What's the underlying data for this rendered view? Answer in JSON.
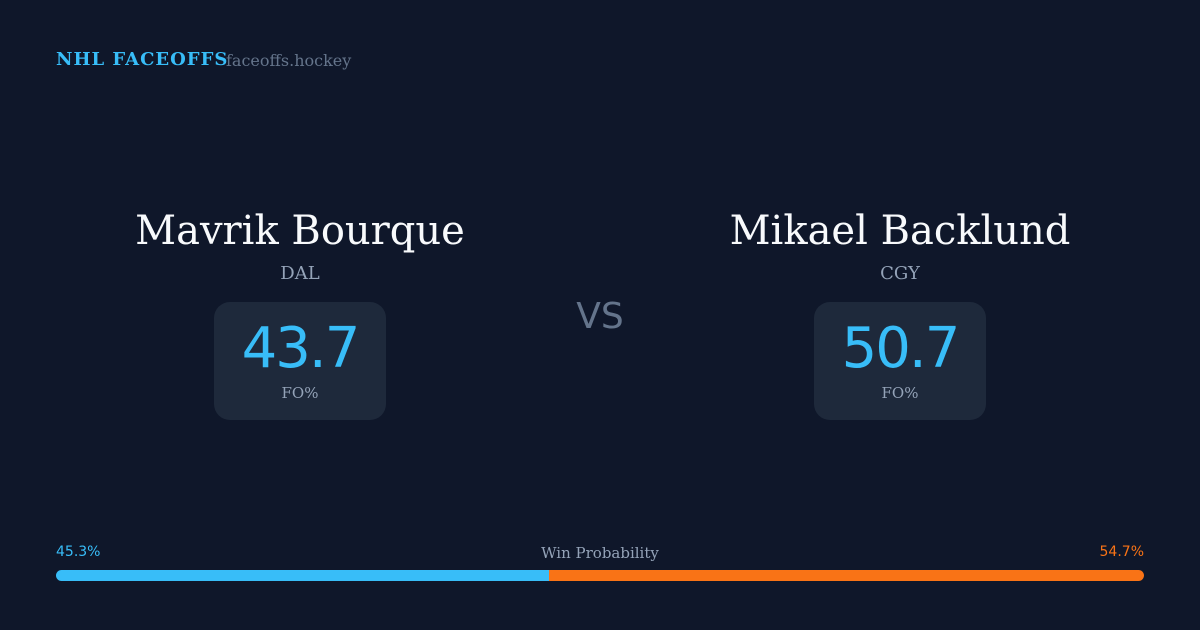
{
  "header": {
    "brand": "NHL FACEOFFS",
    "site": "faceoffs.hockey"
  },
  "players": [
    {
      "name": "Mavrik Bourque",
      "team": "DAL",
      "fo_pct": "43.7",
      "fo_label": "FO%"
    },
    {
      "name": "Mikael Backlund",
      "team": "CGY",
      "fo_pct": "50.7",
      "fo_label": "FO%"
    }
  ],
  "vs": "VS",
  "win_probability": {
    "label": "Win Probability",
    "left": "45.3%",
    "right": "54.7%",
    "left_value": 45.3,
    "right_value": 54.7
  },
  "colors": {
    "background": "#0f172a",
    "card": "#1e293b",
    "accent_blue": "#38bdf8",
    "accent_orange": "#f97316",
    "muted": "#94a3b8"
  }
}
